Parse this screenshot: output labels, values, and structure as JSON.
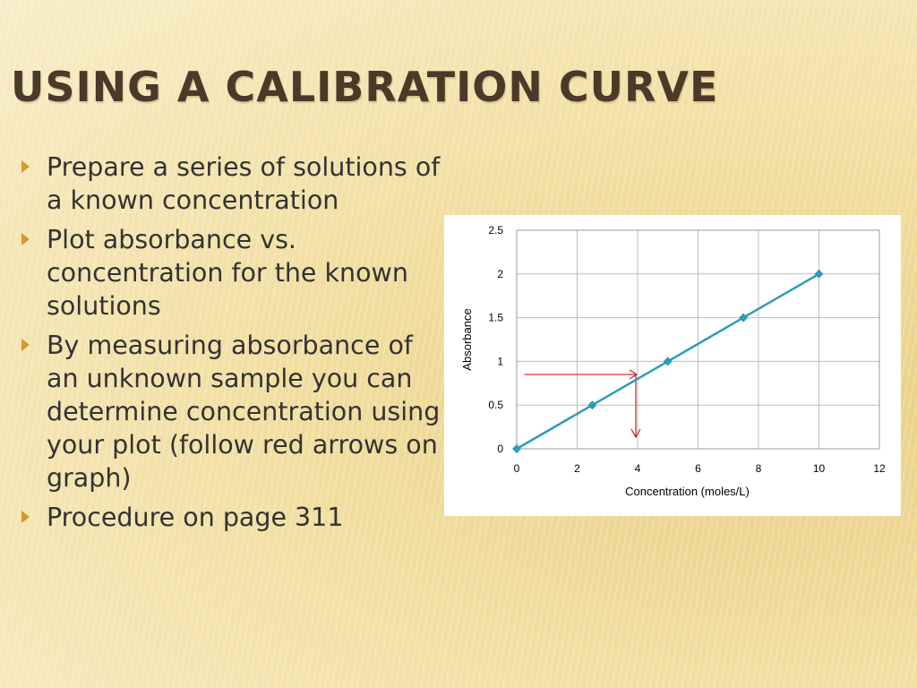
{
  "slide": {
    "title": "Using a calibration curve",
    "bullets": [
      "Prepare a series of solutions of a known concentration",
      "Plot absorbance vs. concentration for the known solutions",
      "By measuring absorbance of an unknown sample you can determine concentration using your plot (follow red arrows on graph)",
      "Procedure on page 311"
    ]
  },
  "colors": {
    "series_line": "#2e9bb8",
    "annotation_arrow": "#cc1f1f",
    "bullet": "#d29a2f"
  },
  "chart_data": {
    "type": "line",
    "x": [
      0,
      2.5,
      5,
      7.5,
      10
    ],
    "series": [
      {
        "values": [
          0,
          0.5,
          1,
          1.5,
          2
        ],
        "marker": "diamond"
      }
    ],
    "xlabel": "Concentration (moles/L)",
    "ylabel": "Absorbance",
    "xlim": [
      0,
      12
    ],
    "ylim": [
      0,
      2.5
    ],
    "x_ticks": [
      "0",
      "2",
      "4",
      "6",
      "8",
      "10",
      "12"
    ],
    "y_ticks": [
      "0",
      "0.5",
      "1",
      "1.5",
      "2",
      "2.5"
    ],
    "grid": true,
    "annotation": {
      "unknown_absorbance": 0.85,
      "unknown_concentration": 4,
      "x_start": 0.25,
      "description_visible": false
    }
  }
}
